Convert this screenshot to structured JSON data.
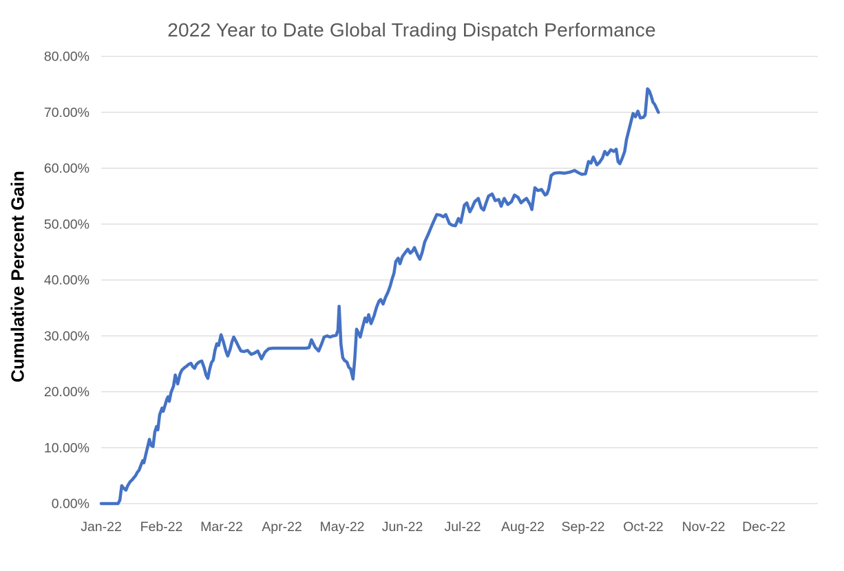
{
  "page": {
    "background": "#ffffff"
  },
  "chart_data": {
    "type": "line",
    "title": "2022 Year to Date Global Trading Dispatch Performance",
    "xlabel": "",
    "ylabel": "Cumulative Percent Gain",
    "legend_position": "none",
    "grid": "horizontal-only",
    "ylim": [
      0,
      80
    ],
    "xlim_months": [
      0,
      12
    ],
    "categories": [
      "Jan-22",
      "Feb-22",
      "Mar-22",
      "Apr-22",
      "May-22",
      "Jun-22",
      "Jul-22",
      "Aug-22",
      "Sep-22",
      "Oct-22",
      "Nov-22",
      "Dec-22"
    ],
    "y_tick_values": [
      0,
      10,
      20,
      30,
      40,
      50,
      60,
      70,
      80
    ],
    "y_tick_labels": [
      "0.00%",
      "10.00%",
      "20.00%",
      "30.00%",
      "40.00%",
      "50.00%",
      "60.00%",
      "70.00%",
      "80.00%"
    ],
    "colors": {
      "line": "#4472C4",
      "grid": "#D9D9D9",
      "title": "#595959",
      "tick_label": "#595959",
      "y_axis_title": "#000000"
    },
    "series": [
      {
        "name": "Cumulative Percent Gain",
        "x_unit": "months_since_jan1_2022",
        "y_unit": "percent",
        "points": [
          [
            0.0,
            0.0
          ],
          [
            0.1,
            0.0
          ],
          [
            0.2,
            0.0
          ],
          [
            0.28,
            0.0
          ],
          [
            0.31,
            0.6
          ],
          [
            0.34,
            3.2
          ],
          [
            0.37,
            2.8
          ],
          [
            0.41,
            2.4
          ],
          [
            0.44,
            3.2
          ],
          [
            0.48,
            3.9
          ],
          [
            0.51,
            4.2
          ],
          [
            0.54,
            4.6
          ],
          [
            0.57,
            5.0
          ],
          [
            0.6,
            5.6
          ],
          [
            0.63,
            6.0
          ],
          [
            0.66,
            6.9
          ],
          [
            0.69,
            7.7
          ],
          [
            0.71,
            7.3
          ],
          [
            0.74,
            8.8
          ],
          [
            0.77,
            10.1
          ],
          [
            0.8,
            11.5
          ],
          [
            0.83,
            10.4
          ],
          [
            0.86,
            10.2
          ],
          [
            0.89,
            12.8
          ],
          [
            0.92,
            13.8
          ],
          [
            0.94,
            13.2
          ],
          [
            0.97,
            15.9
          ],
          [
            1.01,
            17.1
          ],
          [
            1.03,
            16.5
          ],
          [
            1.06,
            17.6
          ],
          [
            1.09,
            18.7
          ],
          [
            1.11,
            19.1
          ],
          [
            1.13,
            18.3
          ],
          [
            1.16,
            19.9
          ],
          [
            1.2,
            21.0
          ],
          [
            1.23,
            23.0
          ],
          [
            1.27,
            21.4
          ],
          [
            1.31,
            23.2
          ],
          [
            1.34,
            23.9
          ],
          [
            1.38,
            24.3
          ],
          [
            1.42,
            24.6
          ],
          [
            1.45,
            24.9
          ],
          [
            1.49,
            25.1
          ],
          [
            1.52,
            24.5
          ],
          [
            1.55,
            24.2
          ],
          [
            1.58,
            24.9
          ],
          [
            1.61,
            25.2
          ],
          [
            1.64,
            25.4
          ],
          [
            1.67,
            25.5
          ],
          [
            1.71,
            24.3
          ],
          [
            1.74,
            23.0
          ],
          [
            1.77,
            22.4
          ],
          [
            1.8,
            24.0
          ],
          [
            1.83,
            25.2
          ],
          [
            1.86,
            25.7
          ],
          [
            1.89,
            27.5
          ],
          [
            1.92,
            28.6
          ],
          [
            1.95,
            28.3
          ],
          [
            1.99,
            30.2
          ],
          [
            2.03,
            28.9
          ],
          [
            2.07,
            27.3
          ],
          [
            2.1,
            26.4
          ],
          [
            2.14,
            27.6
          ],
          [
            2.17,
            28.9
          ],
          [
            2.2,
            29.8
          ],
          [
            2.24,
            29.0
          ],
          [
            2.28,
            28.1
          ],
          [
            2.32,
            27.3
          ],
          [
            2.37,
            27.2
          ],
          [
            2.43,
            27.4
          ],
          [
            2.49,
            26.7
          ],
          [
            2.54,
            26.9
          ],
          [
            2.6,
            27.3
          ],
          [
            2.66,
            25.9
          ],
          [
            2.72,
            27.1
          ],
          [
            2.78,
            27.7
          ],
          [
            2.85,
            27.8
          ],
          [
            2.92,
            27.8
          ],
          [
            3.0,
            27.8
          ],
          [
            3.1,
            27.8
          ],
          [
            3.2,
            27.8
          ],
          [
            3.3,
            27.8
          ],
          [
            3.4,
            27.8
          ],
          [
            3.45,
            27.9
          ],
          [
            3.49,
            29.3
          ],
          [
            3.55,
            28.0
          ],
          [
            3.61,
            27.3
          ],
          [
            3.66,
            28.6
          ],
          [
            3.7,
            29.8
          ],
          [
            3.75,
            30.0
          ],
          [
            3.8,
            29.8
          ],
          [
            3.85,
            30.0
          ],
          [
            3.9,
            30.1
          ],
          [
            3.93,
            31.0
          ],
          [
            3.95,
            35.3
          ],
          [
            3.98,
            28.5
          ],
          [
            4.01,
            26.1
          ],
          [
            4.04,
            25.6
          ],
          [
            4.08,
            25.3
          ],
          [
            4.11,
            24.4
          ],
          [
            4.14,
            24.1
          ],
          [
            4.18,
            22.3
          ],
          [
            4.21,
            26.0
          ],
          [
            4.24,
            31.2
          ],
          [
            4.27,
            30.6
          ],
          [
            4.3,
            29.8
          ],
          [
            4.34,
            31.6
          ],
          [
            4.38,
            33.2
          ],
          [
            4.41,
            32.5
          ],
          [
            4.44,
            33.8
          ],
          [
            4.48,
            32.2
          ],
          [
            4.53,
            33.6
          ],
          [
            4.57,
            35.1
          ],
          [
            4.61,
            36.2
          ],
          [
            4.64,
            36.5
          ],
          [
            4.68,
            35.7
          ],
          [
            4.72,
            36.9
          ],
          [
            4.76,
            37.8
          ],
          [
            4.8,
            39.0
          ],
          [
            4.83,
            40.2
          ],
          [
            4.86,
            41.2
          ],
          [
            4.89,
            43.3
          ],
          [
            4.93,
            43.9
          ],
          [
            4.96,
            42.9
          ],
          [
            5.0,
            44.2
          ],
          [
            5.04,
            44.8
          ],
          [
            5.09,
            45.5
          ],
          [
            5.13,
            44.8
          ],
          [
            5.17,
            45.2
          ],
          [
            5.2,
            45.8
          ],
          [
            5.25,
            44.5
          ],
          [
            5.29,
            43.7
          ],
          [
            5.33,
            45.0
          ],
          [
            5.37,
            46.8
          ],
          [
            5.43,
            48.2
          ],
          [
            5.48,
            49.5
          ],
          [
            5.52,
            50.5
          ],
          [
            5.57,
            51.7
          ],
          [
            5.63,
            51.6
          ],
          [
            5.68,
            51.3
          ],
          [
            5.72,
            51.7
          ],
          [
            5.78,
            50.1
          ],
          [
            5.83,
            49.8
          ],
          [
            5.88,
            49.7
          ],
          [
            5.93,
            51.0
          ],
          [
            5.97,
            50.3
          ],
          [
            6.03,
            53.4
          ],
          [
            6.07,
            53.8
          ],
          [
            6.12,
            52.2
          ],
          [
            6.16,
            53.0
          ],
          [
            6.2,
            54.0
          ],
          [
            6.26,
            54.6
          ],
          [
            6.31,
            52.9
          ],
          [
            6.35,
            52.5
          ],
          [
            6.39,
            53.8
          ],
          [
            6.43,
            55.0
          ],
          [
            6.49,
            55.4
          ],
          [
            6.54,
            54.2
          ],
          [
            6.6,
            54.4
          ],
          [
            6.64,
            53.2
          ],
          [
            6.69,
            54.6
          ],
          [
            6.75,
            53.5
          ],
          [
            6.81,
            54.0
          ],
          [
            6.86,
            55.2
          ],
          [
            6.92,
            54.8
          ],
          [
            6.97,
            53.8
          ],
          [
            7.01,
            54.2
          ],
          [
            7.06,
            54.6
          ],
          [
            7.12,
            53.5
          ],
          [
            7.15,
            52.6
          ],
          [
            7.2,
            56.5
          ],
          [
            7.25,
            56.0
          ],
          [
            7.31,
            56.2
          ],
          [
            7.37,
            55.2
          ],
          [
            7.4,
            55.4
          ],
          [
            7.43,
            56.3
          ],
          [
            7.47,
            58.7
          ],
          [
            7.52,
            59.1
          ],
          [
            7.6,
            59.2
          ],
          [
            7.69,
            59.1
          ],
          [
            7.78,
            59.3
          ],
          [
            7.86,
            59.6
          ],
          [
            7.92,
            59.2
          ],
          [
            7.98,
            58.9
          ],
          [
            8.04,
            59.0
          ],
          [
            8.09,
            61.2
          ],
          [
            8.13,
            60.9
          ],
          [
            8.17,
            62.0
          ],
          [
            8.23,
            60.6
          ],
          [
            8.27,
            61.0
          ],
          [
            8.32,
            61.8
          ],
          [
            8.36,
            63.0
          ],
          [
            8.4,
            62.4
          ],
          [
            8.46,
            63.3
          ],
          [
            8.51,
            63.0
          ],
          [
            8.55,
            63.4
          ],
          [
            8.58,
            61.2
          ],
          [
            8.61,
            60.8
          ],
          [
            8.65,
            61.8
          ],
          [
            8.69,
            63.0
          ],
          [
            8.72,
            65.1
          ],
          [
            8.78,
            67.7
          ],
          [
            8.83,
            69.8
          ],
          [
            8.87,
            69.2
          ],
          [
            8.91,
            70.2
          ],
          [
            8.95,
            69.0
          ],
          [
            9.0,
            69.1
          ],
          [
            9.03,
            69.5
          ],
          [
            9.07,
            74.2
          ],
          [
            9.1,
            73.8
          ],
          [
            9.13,
            72.9
          ],
          [
            9.16,
            71.8
          ],
          [
            9.19,
            71.4
          ],
          [
            9.25,
            70.0
          ]
        ]
      }
    ]
  }
}
